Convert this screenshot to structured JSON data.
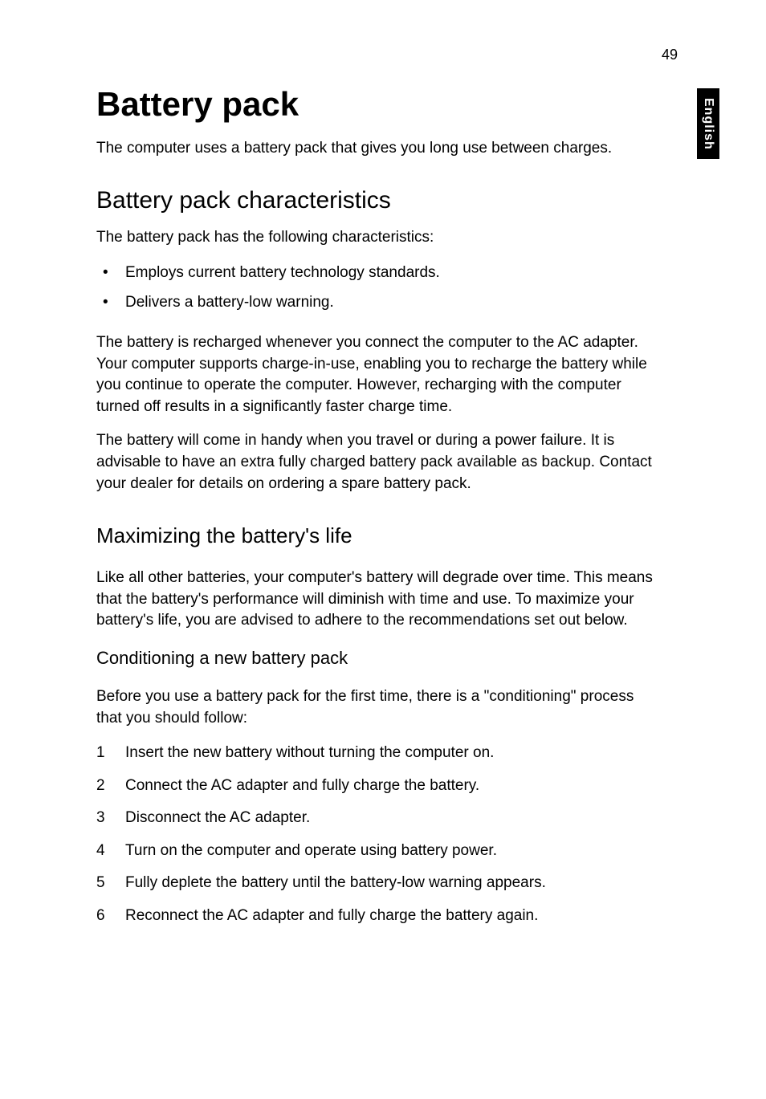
{
  "page_number": "49",
  "side_tab": "English",
  "h1": "Battery pack",
  "p_intro": "The computer uses a battery pack that gives you long use between charges.",
  "h2": "Battery pack characteristics",
  "p_char_intro": "The battery pack has the following characteristics:",
  "bullets": [
    "Employs current battery technology standards.",
    "Delivers a battery-low warning."
  ],
  "p_recharge": "The battery is recharged whenever you connect the computer to the AC adapter. Your computer supports charge-in-use, enabling you to recharge the battery while you continue to operate the computer. However, recharging with the computer turned off results in a significantly faster charge time.",
  "p_handy": "The battery will come in handy when you travel or during a power failure. It is advisable to have an extra fully charged battery pack available as backup. Contact your dealer for details on ordering a spare battery pack.",
  "h3": "Maximizing the battery's life",
  "p_max": "Like all other batteries, your computer's battery will degrade over time. This means that the battery's performance will diminish with time and use. To maximize your battery's life, you are advised to adhere to the recommendations set out below.",
  "h4": "Conditioning a new battery pack",
  "p_cond": "Before you use a battery pack for the first time, there is a \"conditioning\" process that you should follow:",
  "steps": [
    "Insert the new battery without turning the computer on.",
    "Connect the AC adapter and fully charge the battery.",
    "Disconnect the AC adapter.",
    "Turn on the computer and operate using battery power.",
    "Fully deplete the battery until the battery-low warning appears.",
    "Reconnect the AC adapter and fully charge the battery again."
  ],
  "colors": {
    "text": "#000000",
    "background": "#ffffff",
    "tab_bg": "#000000",
    "tab_text": "#ffffff"
  },
  "typography": {
    "h1_size": 42,
    "h2_size": 30,
    "h3_size": 26,
    "h4_size": 22,
    "body_size": 19,
    "font_family": "Segoe UI"
  }
}
